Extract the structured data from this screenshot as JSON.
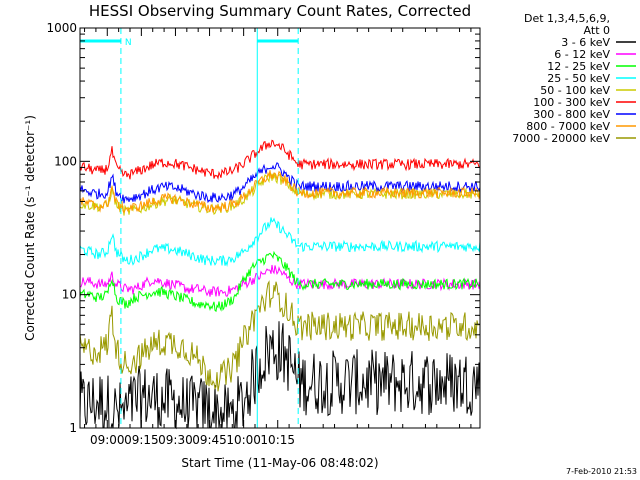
{
  "chart_data": {
    "type": "line",
    "title": "HESSI Observing Summary Count Rates, Corrected",
    "xlabel": "Start Time (11-May-06 08:48:02)",
    "ylabel": "Corrected Count Rate (s⁻¹ detector⁻¹)",
    "y_scale": "log",
    "ylim": [
      1,
      1000
    ],
    "xlim_minutes": [
      48,
      224
    ],
    "x_ticks": [
      {
        "label": "09:00",
        "min": 60
      },
      {
        "label": "09:15",
        "min": 75
      },
      {
        "label": "09:30",
        "min": 90
      },
      {
        "label": "09:45",
        "min": 105
      },
      {
        "label": "10:00",
        "min": 120
      },
      {
        "label": "10:15",
        "min": 135
      }
    ],
    "y_ticks": [
      {
        "label": "1",
        "v": 1
      },
      {
        "label": "10",
        "v": 10
      },
      {
        "label": "100",
        "v": 100
      },
      {
        "label": "1000",
        "v": 1000
      }
    ],
    "legend_header": [
      "Det 1,3,4,5,6,9,",
      "Att 0"
    ],
    "night_markers": {
      "label": "N",
      "start_min": 48,
      "end_min": 66
    },
    "saa_markers": {
      "start_min": 126,
      "end_min": 144
    },
    "series": [
      {
        "name": "3 - 6 keV",
        "color": "#000000",
        "x": [
          48,
          52,
          56,
          60,
          64,
          68,
          72,
          76,
          80,
          84,
          88,
          92,
          96,
          100,
          104,
          108,
          112,
          116,
          120,
          124,
          128,
          132,
          136,
          140,
          144
        ],
        "y": [
          1.5,
          1.5,
          1.6,
          1.5,
          1.3,
          1.3,
          1.6,
          1.7,
          1.7,
          1.6,
          1.6,
          1.5,
          1.4,
          1.4,
          1.4,
          1.3,
          1.2,
          1.3,
          1.6,
          2.3,
          3.3,
          4.0,
          3.8,
          3.2,
          2.2
        ]
      },
      {
        "name": "6 - 12 keV",
        "color": "#ff00ff",
        "x": [
          48,
          52,
          56,
          60,
          62,
          64,
          68,
          72,
          76,
          80,
          84,
          88,
          92,
          96,
          100,
          104,
          108,
          112,
          116,
          120,
          124,
          128,
          132,
          136,
          140,
          144
        ],
        "y": [
          12.5,
          12.5,
          12,
          12,
          14,
          12,
          11,
          11,
          12,
          13,
          12.5,
          12,
          11.5,
          11,
          11,
          10.5,
          10.5,
          10.5,
          11,
          12,
          13,
          14,
          15.5,
          15,
          13,
          12
        ]
      },
      {
        "name": "12 - 25 keV",
        "color": "#00ff00",
        "x": [
          48,
          52,
          56,
          60,
          62,
          64,
          68,
          72,
          76,
          80,
          84,
          88,
          92,
          96,
          100,
          104,
          108,
          112,
          116,
          120,
          124,
          128,
          132,
          136,
          140,
          144
        ],
        "y": [
          10,
          10,
          9.5,
          10,
          14,
          9.5,
          8.5,
          9.5,
          10,
          10.5,
          10.5,
          10,
          9.5,
          9,
          8.5,
          8.5,
          8,
          8.5,
          9.5,
          13,
          16,
          18,
          20,
          18,
          15,
          12
        ]
      },
      {
        "name": "25 - 50 keV",
        "color": "#00ffff",
        "x": [
          48,
          52,
          56,
          60,
          62,
          64,
          68,
          72,
          76,
          80,
          84,
          88,
          92,
          96,
          100,
          104,
          108,
          112,
          116,
          120,
          124,
          128,
          132,
          136,
          140,
          144
        ],
        "y": [
          22,
          21,
          20,
          21,
          29,
          21,
          18,
          18.5,
          20,
          22,
          22,
          22,
          21,
          20,
          19,
          18,
          18,
          18,
          19,
          21,
          25,
          30,
          35,
          32,
          27,
          23
        ]
      },
      {
        "name": "50 - 100 keV",
        "color": "#cccc00",
        "x": [
          48,
          52,
          56,
          60,
          62,
          64,
          68,
          72,
          76,
          80,
          84,
          88,
          92,
          96,
          100,
          104,
          108,
          112,
          116,
          120,
          124,
          128,
          132,
          136,
          140,
          144
        ],
        "y": [
          48,
          47,
          46,
          46,
          62,
          47,
          42,
          43,
          45,
          48,
          50,
          52,
          50,
          48,
          46,
          44,
          44,
          45,
          47,
          52,
          60,
          70,
          78,
          74,
          66,
          57
        ]
      },
      {
        "name": "100 - 300 keV",
        "color": "#ff0000",
        "x": [
          48,
          52,
          56,
          60,
          62,
          64,
          68,
          72,
          76,
          80,
          84,
          88,
          92,
          96,
          100,
          104,
          108,
          112,
          116,
          120,
          124,
          128,
          132,
          136,
          140,
          144
        ],
        "y": [
          92,
          88,
          84,
          88,
          120,
          88,
          78,
          82,
          88,
          94,
          98,
          98,
          94,
          90,
          86,
          82,
          80,
          82,
          86,
          96,
          110,
          125,
          140,
          130,
          112,
          95
        ]
      },
      {
        "name": "300 - 800 keV",
        "color": "#0000ff",
        "x": [
          48,
          52,
          56,
          60,
          62,
          64,
          68,
          72,
          76,
          80,
          84,
          88,
          92,
          96,
          100,
          104,
          108,
          112,
          116,
          120,
          124,
          128,
          132,
          136,
          140,
          144
        ],
        "y": [
          62,
          59,
          57,
          58,
          78,
          59,
          52,
          54,
          57,
          61,
          64,
          64,
          62,
          59,
          56,
          54,
          53,
          54,
          57,
          64,
          74,
          84,
          94,
          88,
          75,
          65
        ]
      },
      {
        "name": "800 - 7000 keV",
        "color": "#ff9900",
        "x": [
          48,
          52,
          56,
          60,
          62,
          64,
          68,
          72,
          76,
          80,
          84,
          88,
          92,
          96,
          100,
          104,
          108,
          112,
          116,
          120,
          124,
          128,
          132,
          136,
          140,
          144
        ],
        "y": [
          50,
          48,
          46,
          47,
          64,
          48,
          44,
          45,
          47,
          50,
          52,
          53,
          51,
          49,
          47,
          45,
          45,
          46,
          48,
          54,
          63,
          72,
          80,
          76,
          68,
          58
        ]
      },
      {
        "name": "7000 - 20000 keV",
        "color": "#999900",
        "x": [
          48,
          52,
          56,
          60,
          62,
          64,
          68,
          72,
          76,
          80,
          84,
          88,
          92,
          96,
          100,
          104,
          108,
          112,
          116,
          120,
          124,
          128,
          132,
          136,
          140,
          144
        ],
        "y": [
          4.0,
          3.8,
          3.8,
          4.2,
          7.5,
          3.8,
          3.0,
          3.2,
          3.6,
          4.2,
          4.4,
          4.4,
          4.2,
          3.8,
          3.2,
          2.6,
          2.4,
          2.5,
          3.0,
          4.5,
          6.5,
          8.5,
          10.5,
          9.5,
          7.5,
          5.8
        ]
      }
    ]
  },
  "timestamp": "7-Feb-2010 21:53"
}
